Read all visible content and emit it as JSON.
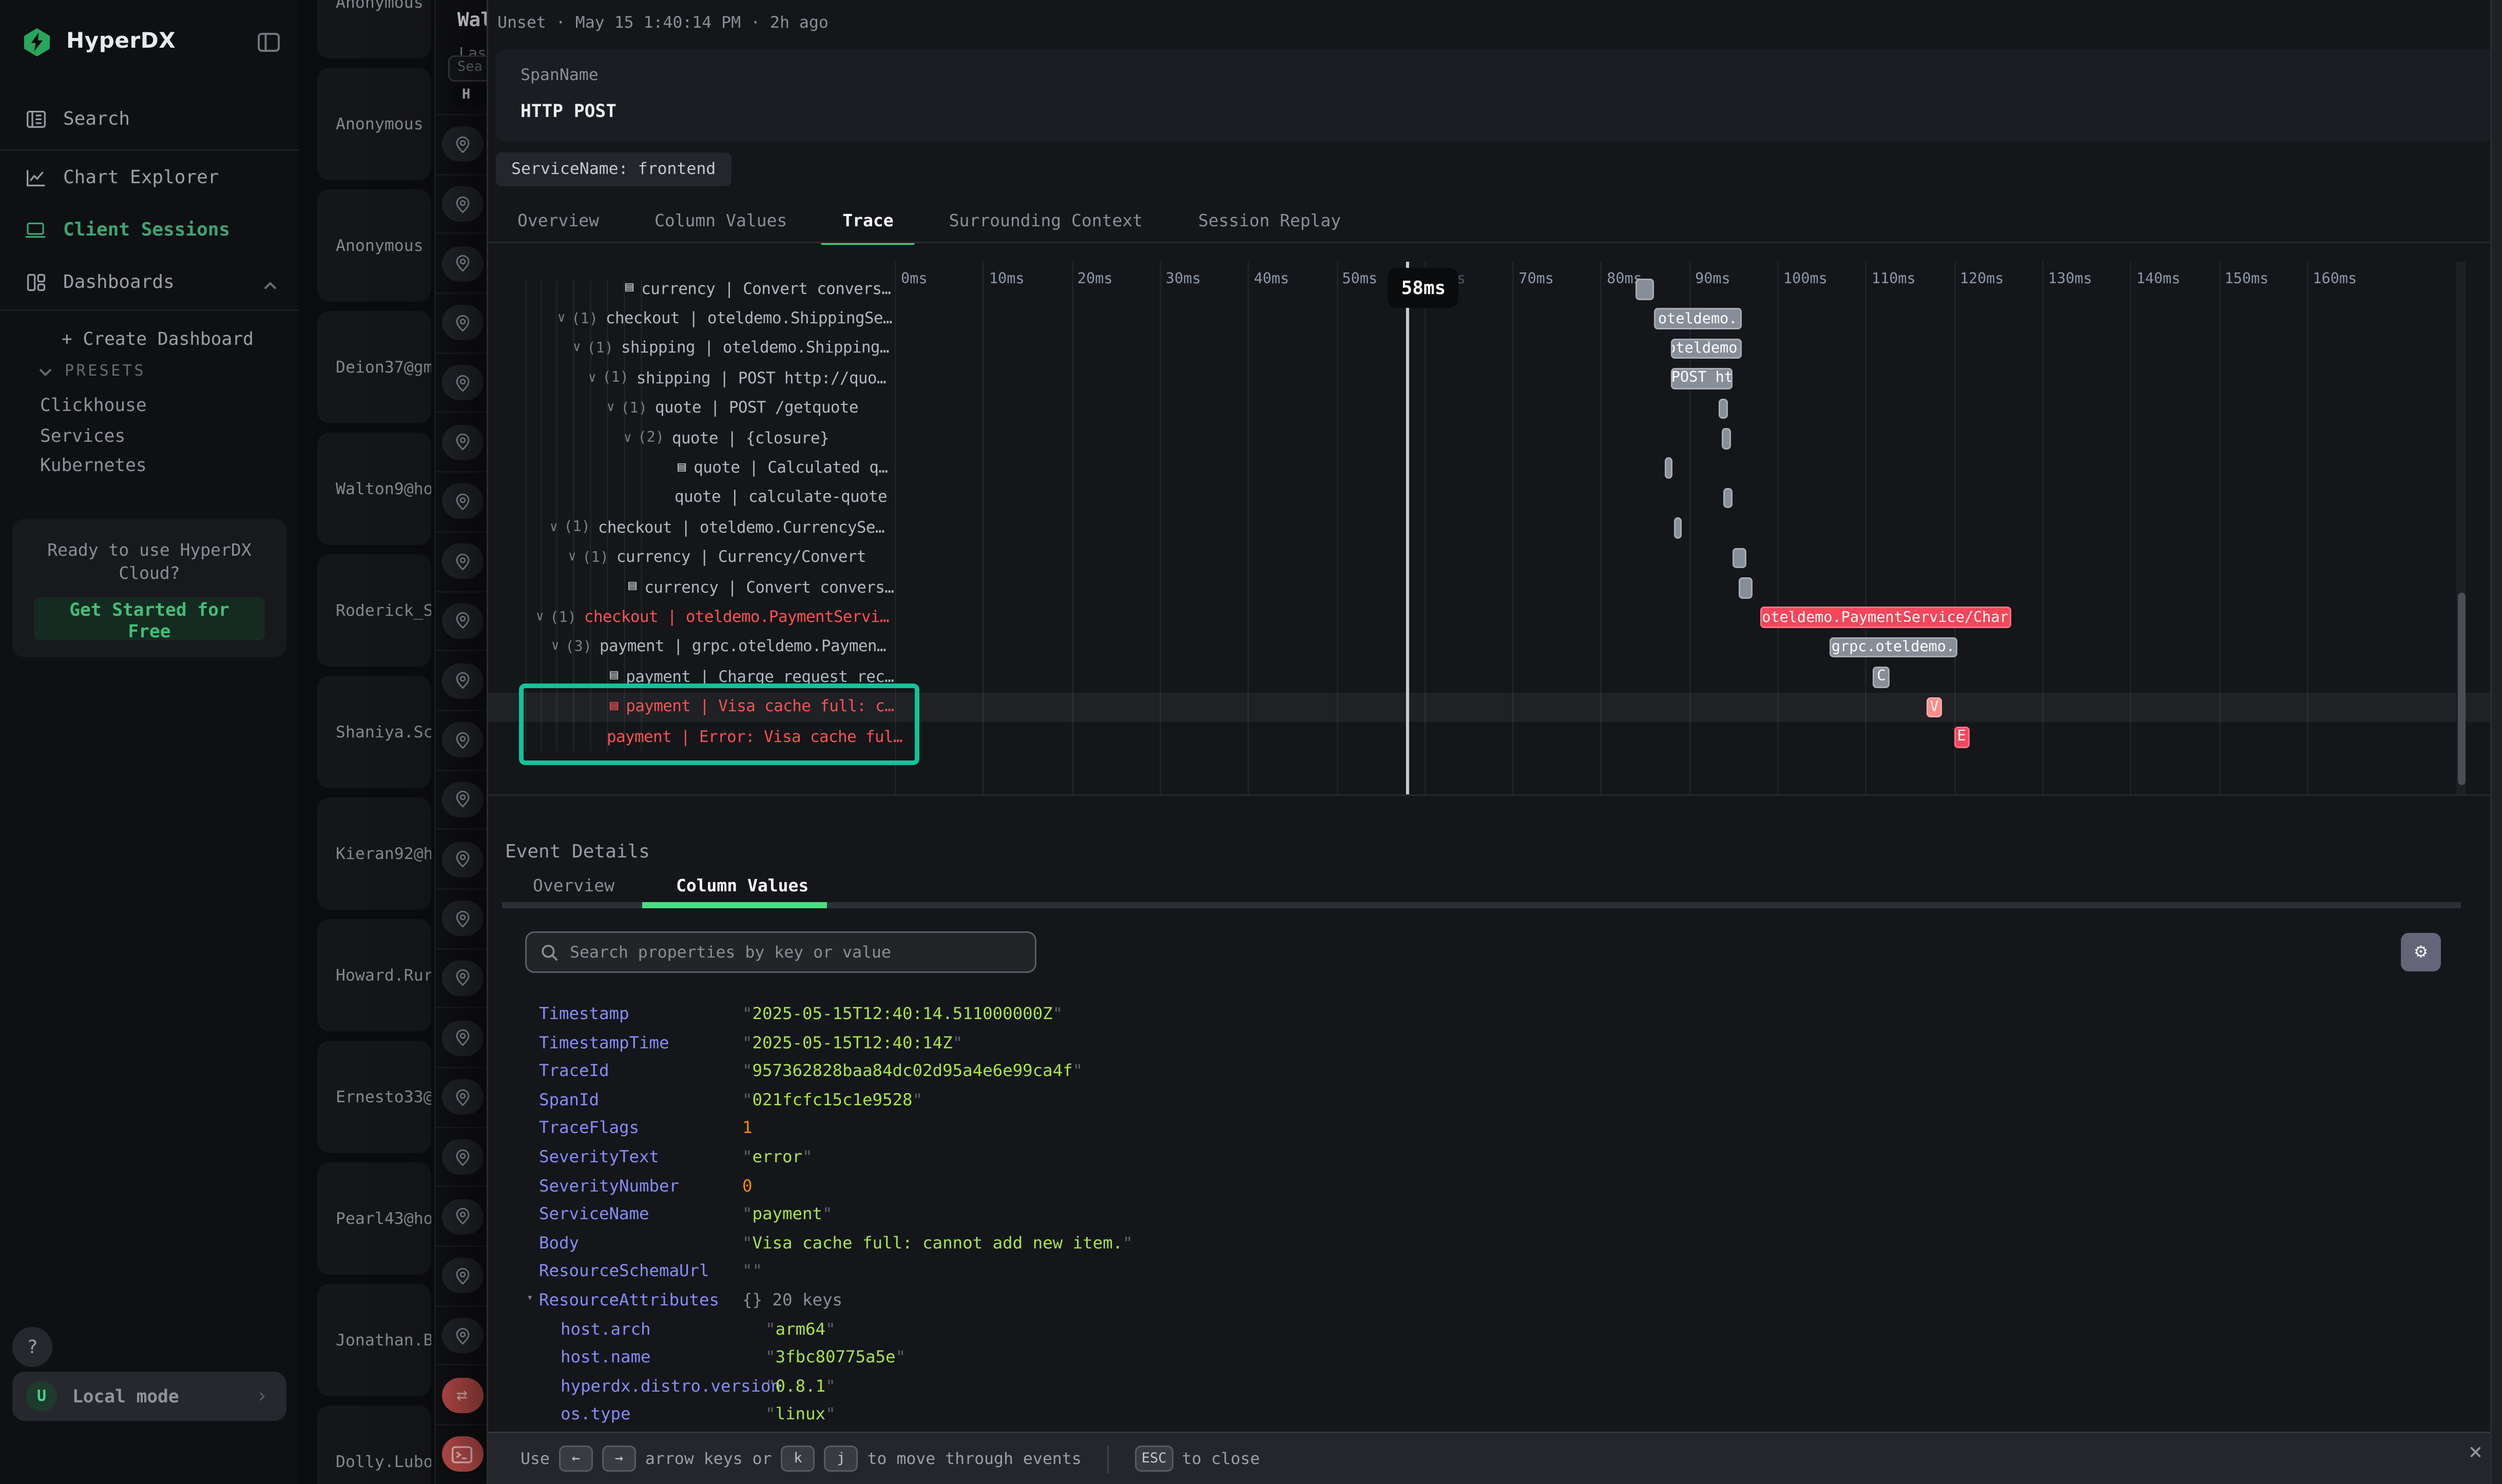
{
  "colors": {
    "accent_green": "#4ade80",
    "sidebar_active_green": "#38a873",
    "teal_highlight": "#12c39a",
    "error_red": "#fa5252",
    "bar_gray": "#878e98",
    "bar_red": "#f6465a",
    "bar_salmon": "#ff8b8b",
    "key_indigo": "#888dfa",
    "value_lime": "#a9e34b",
    "number_orange": "#f08c00",
    "logo_green": "#27a65c"
  },
  "sidebar": {
    "logo_text": "HyperDX",
    "nav": [
      {
        "label": "Search",
        "icon": "logs-icon",
        "active": false
      },
      {
        "label": "Chart Explorer",
        "icon": "chart-icon",
        "active": false
      },
      {
        "label": "Client Sessions",
        "icon": "laptop-icon",
        "active": true
      },
      {
        "label": "Dashboards",
        "icon": "grid-icon",
        "active": false,
        "expanded": true
      }
    ],
    "create_dashboard": "+ Create Dashboard",
    "presets_header": "PRESETS",
    "presets": [
      "Clickhouse",
      "Services",
      "Kubernetes"
    ],
    "cloud_card": {
      "prompt": "Ready to use HyperDX Cloud?",
      "cta": "Get Started for Free"
    },
    "help_label": "?",
    "local_mode": {
      "avatar_initial": "U",
      "label": "Local mode"
    }
  },
  "sessions": {
    "items": [
      "Anonymous",
      "Anonymous",
      "Anonymous",
      "Deion37@gm",
      "Walton9@ho",
      "Roderick_S",
      "Shaniya.Sc",
      "Kieran92@h",
      "Howard.Rur",
      "Ernesto33@",
      "Pearl43@ho",
      "Jonathan.B",
      "Dolly.Lubo"
    ]
  },
  "mini_panel": {
    "title": "Wal",
    "subtitle": "Las",
    "search_value": "Sea",
    "button_label": "H",
    "pin_row_count": 21,
    "tail_icons": [
      "swap-icon",
      "terminal-icon"
    ]
  },
  "drawer": {
    "meta": "Unset · May 15 1:40:14 PM · 2h ago",
    "span_card": {
      "label": "SpanName",
      "value": "HTTP POST"
    },
    "service_tag": "ServiceName: frontend",
    "tabs": [
      {
        "label": "Overview",
        "active": false
      },
      {
        "label": "Column Values",
        "active": false
      },
      {
        "label": "Trace",
        "active": true
      },
      {
        "label": "Surrounding Context",
        "active": false
      },
      {
        "label": "Session Replay",
        "active": false
      }
    ],
    "trace": {
      "axis_ticks": [
        "0ms",
        "10ms",
        "20ms",
        "30ms",
        "40ms",
        "50ms",
        "60ms",
        "70ms",
        "80ms",
        "90ms",
        "100ms",
        "110ms",
        "120ms",
        "130ms",
        "140ms",
        "150ms",
        "160ms"
      ],
      "cursor": {
        "ms": 58,
        "label": "58ms",
        "dim_tick": "60ms"
      },
      "rows": [
        {
          "indent": 89,
          "icon": true,
          "label": "currency | Convert convers…",
          "bar": {
            "t0": 84,
            "t1": 86,
            "c": "g",
            "label": ""
          }
        },
        {
          "indent": 45,
          "count": "(1)",
          "label": "checkout | oteldemo.ShippingSe…",
          "bar": {
            "t0": 86,
            "t1": 96,
            "c": "g",
            "label": "oteldemo."
          }
        },
        {
          "indent": 55,
          "count": "(1)",
          "label": "shipping | oteldemo.Shipping…",
          "bar": {
            "t0": 88,
            "t1": 96,
            "c": "g",
            "label": "oteldemo."
          }
        },
        {
          "indent": 65,
          "count": "(1)",
          "label": "shipping | POST http://quo…",
          "bar": {
            "t0": 88,
            "t1": 95,
            "c": "g",
            "label": "POST ht"
          }
        },
        {
          "indent": 77,
          "count": "(1)",
          "label": "quote | POST /getquote",
          "bar": {
            "t0": 93.4,
            "t1": 94.5,
            "c": "g",
            "label": ""
          }
        },
        {
          "indent": 88,
          "count": "(2)",
          "label": "quote | {closure}",
          "bar": {
            "t0": 93.8,
            "t1": 94.8,
            "c": "g",
            "label": ""
          }
        },
        {
          "indent": 123,
          "icon": true,
          "label": "quote | Calculated q…",
          "bar": {
            "t0": 87.2,
            "t1": 88.2,
            "c": "g",
            "label": ""
          }
        },
        {
          "indent": 121,
          "label": "quote | calculate-quote",
          "bar": {
            "t0": 93.9,
            "t1": 94.9,
            "c": "g",
            "label": ""
          }
        },
        {
          "indent": 40,
          "count": "(1)",
          "label": "checkout | oteldemo.CurrencySe…",
          "bar": {
            "t0": 88.3,
            "t1": 89.2,
            "c": "g",
            "label": ""
          }
        },
        {
          "indent": 52,
          "count": "(1)",
          "label": "currency | Currency/Convert",
          "bar": {
            "t0": 95,
            "t1": 96.5,
            "c": "g",
            "label": ""
          }
        },
        {
          "indent": 91,
          "icon": true,
          "label": "currency | Convert convers…",
          "bar": {
            "t0": 95.7,
            "t1": 97.2,
            "c": "g",
            "label": ""
          }
        },
        {
          "indent": 31,
          "count": "(1)",
          "error": true,
          "label": "checkout | oteldemo.PaymentServi…",
          "bar": {
            "t0": 98,
            "t1": 126.5,
            "c": "r",
            "label": "oteldemo.PaymentService/Char"
          }
        },
        {
          "indent": 41,
          "count": "(3)",
          "label": "payment | grpc.oteldemo.Paymen…",
          "bar": {
            "t0": 105.9,
            "t1": 120.4,
            "c": "g",
            "label": "grpc.oteldemo."
          }
        },
        {
          "indent": 79,
          "icon": true,
          "label": "payment | Charge request rec…",
          "bar": {
            "t0": 110.9,
            "t1": 112.7,
            "c": "g",
            "label": "C"
          }
        },
        {
          "indent": 79,
          "icon": true,
          "error": true,
          "selected": true,
          "label": "payment | Visa cache full: c…",
          "bar": {
            "t0": 116.9,
            "t1": 118.7,
            "c": "s",
            "label": "V"
          }
        },
        {
          "indent": 77,
          "error": true,
          "label": "payment | Error: Visa cache ful…",
          "bar": {
            "t0": 120,
            "t1": 121.8,
            "c": "r",
            "label": "E"
          }
        }
      ]
    },
    "event_details": {
      "title": "Event Details",
      "tabs": [
        {
          "label": "Overview",
          "active": false
        },
        {
          "label": "Column Values",
          "active": true
        }
      ],
      "search_placeholder": "Search properties by key or value",
      "properties": [
        {
          "key": "Timestamp",
          "value": "2025-05-15T12:40:14.511000000Z",
          "type": "string"
        },
        {
          "key": "TimestampTime",
          "value": "2025-05-15T12:40:14Z",
          "type": "string"
        },
        {
          "key": "TraceId",
          "value": "957362828baa84dc02d95a4e6e99ca4f",
          "type": "string"
        },
        {
          "key": "SpanId",
          "value": "021fcfc15c1e9528",
          "type": "string"
        },
        {
          "key": "TraceFlags",
          "value": "1",
          "type": "number"
        },
        {
          "key": "SeverityText",
          "value": "error",
          "type": "string"
        },
        {
          "key": "SeverityNumber",
          "value": "0",
          "type": "number"
        },
        {
          "key": "ServiceName",
          "value": "payment",
          "type": "string"
        },
        {
          "key": "Body",
          "value": "Visa cache full: cannot add new item.",
          "type": "string"
        },
        {
          "key": "ResourceSchemaUrl",
          "value": "",
          "type": "string"
        },
        {
          "key": "ResourceAttributes",
          "value": "{} 20 keys",
          "type": "object",
          "caret": true
        },
        {
          "key": "host.arch",
          "value": "arm64",
          "type": "string",
          "sub": true
        },
        {
          "key": "host.name",
          "value": "3fbc80775a5e",
          "type": "string",
          "sub": true
        },
        {
          "key": "hyperdx.distro.version",
          "value": "0.8.1",
          "type": "string",
          "sub": true
        },
        {
          "key": "os.type",
          "value": "linux",
          "type": "string",
          "sub": true
        }
      ]
    },
    "footer": {
      "use": "Use",
      "arrow_keys": [
        "←",
        "→"
      ],
      "mid1": "arrow keys or",
      "nav_keys": [
        "k",
        "j"
      ],
      "mid2": "to move through events",
      "esc": "ESC",
      "close_text": "to close"
    }
  }
}
